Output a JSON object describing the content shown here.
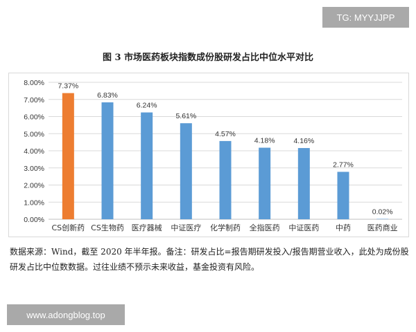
{
  "watermarks": {
    "top": "TG: MYYJJPP",
    "bottom": "www.adongblog.top"
  },
  "figure": {
    "title": "图 3  市场医药板块指数成份股研发占比中位水平对比",
    "note": "数据来源：Wind，截至 2020 年半年报。备注：研发占比=报告期研发投入/报告期营业收入，此处为成份股研发占比中位数数据。过往业绩不预示未来收益，基金投资有风险。"
  },
  "chart_data": {
    "type": "bar",
    "title": "图 3  市场医药板块指数成份股研发占比中位水平对比",
    "xlabel": "",
    "ylabel": "",
    "categories": [
      "CS创新药",
      "CS生物药",
      "医疗器械",
      "中证医疗",
      "化学制药",
      "全指医药",
      "中证医药",
      "中药",
      "医药商业"
    ],
    "values": [
      7.37,
      6.83,
      6.24,
      5.61,
      4.57,
      4.18,
      4.16,
      2.77,
      0.02
    ],
    "data_labels": [
      "7.37%",
      "6.83%",
      "6.24%",
      "5.61%",
      "4.57%",
      "4.18%",
      "4.16%",
      "2.77%",
      "0.02%"
    ],
    "ylim": [
      0,
      8
    ],
    "yticks": [
      0,
      1,
      2,
      3,
      4,
      5,
      6,
      7,
      8
    ],
    "ytick_labels": [
      "0.00%",
      "1.00%",
      "2.00%",
      "3.00%",
      "4.00%",
      "5.00%",
      "6.00%",
      "7.00%",
      "8.00%"
    ],
    "grid": true,
    "legend": "none",
    "colors": {
      "highlight": "#ed7d31",
      "default": "#5b9bd5",
      "grid": "#d9d9d9",
      "axis": "#bfbfbf"
    },
    "highlight_index": 0
  }
}
